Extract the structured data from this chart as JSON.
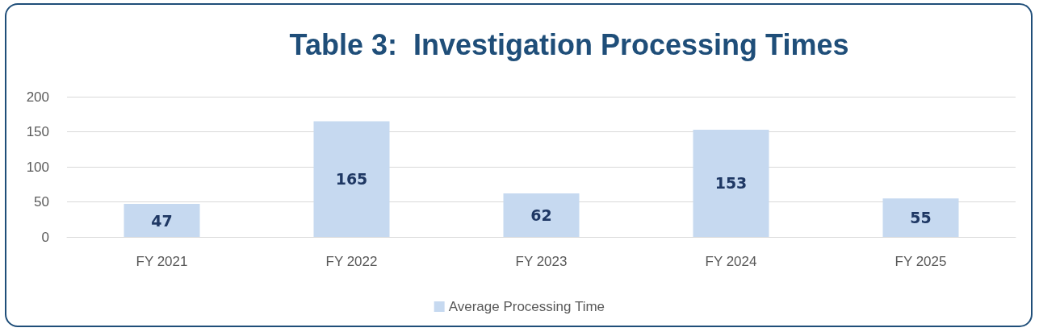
{
  "chart_data": {
    "type": "bar",
    "title": "Table 3:  Investigation Processing Times",
    "categories": [
      "FY 2021",
      "FY 2022",
      "FY 2023",
      "FY 2024",
      "FY 2025"
    ],
    "series": [
      {
        "name": "Average Processing Time",
        "color": "#c6d9f0",
        "values": [
          47,
          165,
          62,
          153,
          55
        ]
      }
    ],
    "ylim": [
      0,
      200
    ],
    "yticks": [
      0,
      50,
      100,
      150,
      200
    ],
    "grid": "y",
    "legend": "bottom",
    "data_labels": true
  }
}
